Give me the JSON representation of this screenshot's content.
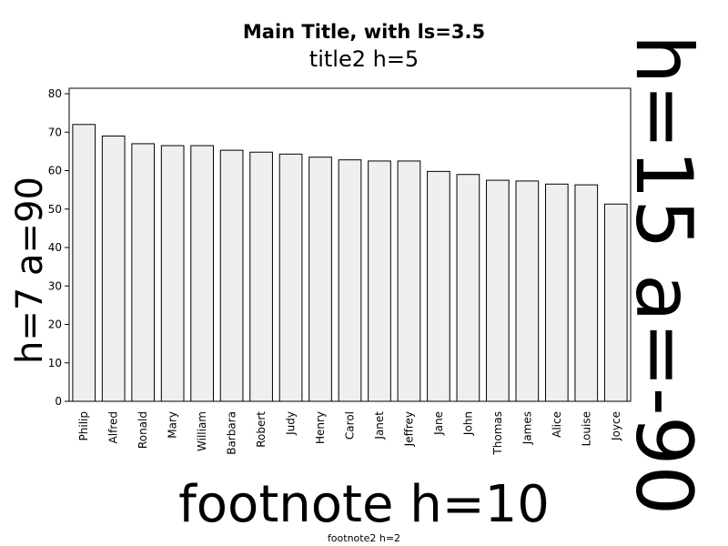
{
  "chart_data": {
    "type": "bar",
    "title": "Main Title, with ls=3.5",
    "subtitle": "title2 h=5",
    "ylabel": "h=7 a=90",
    "right_label": "h=15 a=-90",
    "footnote": "footnote h=10",
    "footnote2": "footnote2 h=2",
    "categories": [
      "Philip",
      "Alfred",
      "Ronald",
      "Mary",
      "William",
      "Barbara",
      "Robert",
      "Judy",
      "Henry",
      "Carol",
      "Janet",
      "Jeffrey",
      "Jane",
      "John",
      "Thomas",
      "James",
      "Alice",
      "Louise",
      "Joyce"
    ],
    "values": [
      72,
      69,
      67,
      66.5,
      66.5,
      65.3,
      64.8,
      64.3,
      63.5,
      62.8,
      62.5,
      62.5,
      59.8,
      59,
      57.5,
      57.3,
      56.5,
      56.3,
      51.3
    ],
    "ylim": [
      0,
      80
    ],
    "yticks": [
      "0",
      "10",
      "20",
      "30",
      "40",
      "50",
      "60",
      "70",
      "80"
    ],
    "bar_color": "#efefef",
    "bar_outline": "#000000",
    "grid": false
  }
}
